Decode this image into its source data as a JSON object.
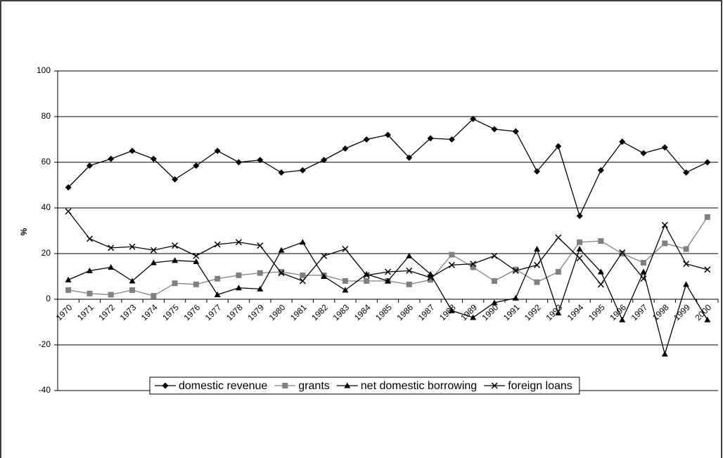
{
  "chart_data": {
    "type": "line",
    "y_label": "%",
    "categories": [
      "1970",
      "1971",
      "1972",
      "1973",
      "1974",
      "1975",
      "1976",
      "1977",
      "1978",
      "1979",
      "1980",
      "1981",
      "1982",
      "1983",
      "1984",
      "1985",
      "1986",
      "1987",
      "1988",
      "1989",
      "1990",
      "1991",
      "1992",
      "1993",
      "1994",
      "1995",
      "1996",
      "1997",
      "1998",
      "1999",
      "2000"
    ],
    "series": [
      {
        "name": "domestic revenue",
        "color": "#000000",
        "marker": "diamond",
        "values": [
          49,
          58.5,
          61.5,
          65,
          61.5,
          52.5,
          58.5,
          65,
          60,
          61,
          55.5,
          56.5,
          61,
          66,
          70,
          72,
          62,
          70.5,
          70,
          79,
          74.5,
          73.5,
          56,
          67,
          36.5,
          56.5,
          69,
          64,
          66.5,
          55.5,
          60
        ]
      },
      {
        "name": "grants",
        "color": "#808080",
        "marker": "square",
        "values": [
          4,
          2.5,
          2,
          4,
          1.5,
          7,
          6.5,
          9,
          10.5,
          11.5,
          12,
          10.5,
          10.5,
          8,
          8,
          8,
          6.5,
          8.5,
          19.5,
          14,
          8,
          13,
          7.5,
          12,
          25,
          25.5,
          20,
          16,
          24.5,
          22,
          36
        ]
      },
      {
        "name": "net domestic borrowing",
        "color": "#000000",
        "marker": "triangle",
        "values": [
          8.5,
          12.5,
          14,
          8,
          16,
          17,
          16.5,
          2,
          5,
          4.5,
          21.5,
          25,
          10,
          4,
          11,
          8,
          19,
          11,
          -5,
          -8,
          -1.5,
          0.5,
          22,
          -6,
          22,
          12,
          -9,
          12,
          -24,
          6.5,
          -9
        ]
      },
      {
        "name": "foreign loans",
        "color": "#000000",
        "marker": "x",
        "values": [
          38.5,
          26.5,
          22.5,
          23,
          21.5,
          23.5,
          19,
          24,
          25,
          23.5,
          11.5,
          8,
          19,
          22,
          10.5,
          12,
          12.5,
          9.5,
          15,
          15.5,
          19,
          12.5,
          15,
          27,
          18,
          6.5,
          20.5,
          9,
          32.5,
          15.5,
          13
        ]
      }
    ],
    "ylim": [
      -40,
      100
    ],
    "yticks": [
      -40,
      -20,
      0,
      20,
      40,
      60,
      80,
      100
    ],
    "grid": true
  }
}
